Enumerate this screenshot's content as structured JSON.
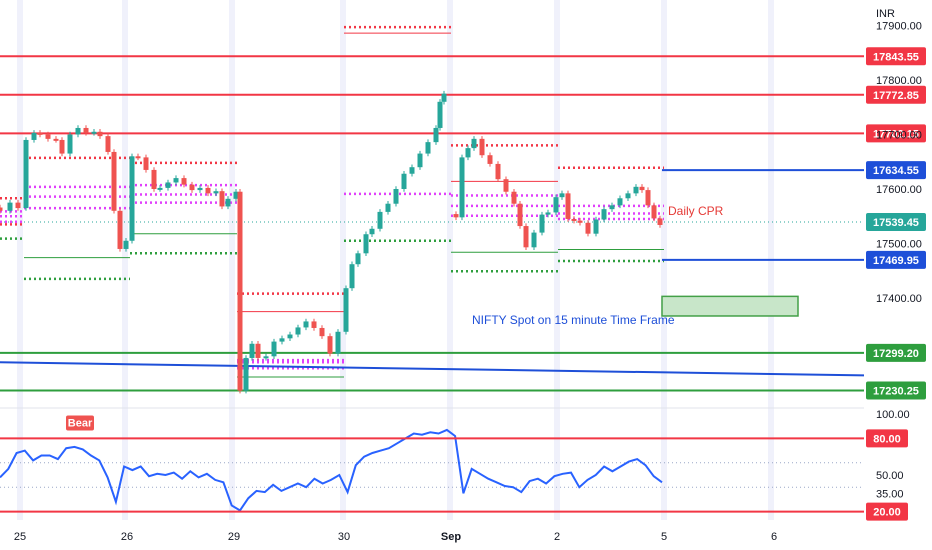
{
  "chart_data": [
    {
      "type": "candlestick",
      "currency": "INR",
      "title": "NIFTY Spot on 15 minute Time Frame",
      "ylim": [
        17375,
        17915
      ],
      "price_ticks": [
        "17900.00",
        "17800.00",
        "17700.00",
        "17600.00",
        "17500.00",
        "17400.00"
      ],
      "x_ticks": [
        "25",
        "26",
        "29",
        "30",
        "Sep",
        "2",
        "5",
        "6"
      ],
      "levels": [
        {
          "label": "17843.55",
          "value": 17843.55,
          "color": "#f23645"
        },
        {
          "label": "17772.85",
          "value": 17772.85,
          "color": "#f23645"
        },
        {
          "label": "17702.15",
          "value": 17702.15,
          "color": "#f23645"
        },
        {
          "label": "17634.55",
          "value": 17634.55,
          "color": "#1e4fd8"
        },
        {
          "label": "17539.45",
          "value": 17539.45,
          "color": "#26a69a"
        },
        {
          "label": "17469.95",
          "value": 17469.95,
          "color": "#1e4fd8"
        },
        {
          "label": "17299.20",
          "value": 17299.2,
          "color": "#2e9e3e"
        },
        {
          "label": "17230.25",
          "value": 17230.25,
          "color": "#2e9e3e"
        }
      ],
      "annotations": {
        "cpr_label": "Daily CPR"
      }
    },
    {
      "type": "line",
      "name": "RSI",
      "ylim": [
        15,
        105
      ],
      "ticks": [
        "100.00",
        "50.00",
        "35.00"
      ],
      "levels": [
        {
          "label": "80.00",
          "value": 80,
          "color": "#f23645"
        },
        {
          "label": "20.00",
          "value": 20,
          "color": "#f23645"
        }
      ],
      "signal_label": "Bear",
      "values": [
        48,
        55,
        68,
        70,
        62,
        66,
        66,
        63,
        72,
        73,
        71,
        66,
        62,
        48,
        28,
        57,
        54,
        57,
        49,
        51,
        50,
        52,
        47,
        53,
        48,
        51,
        46,
        44,
        25,
        21,
        31,
        37,
        36,
        42,
        37,
        40,
        43,
        40,
        47,
        43,
        46,
        50,
        36,
        58,
        65,
        68,
        70,
        72,
        76,
        80,
        84,
        83,
        85,
        84,
        87,
        82,
        35,
        55,
        51,
        47,
        44,
        41,
        40,
        36,
        45,
        47,
        43,
        49,
        51,
        52,
        40,
        46,
        50,
        57,
        53,
        57,
        61,
        63,
        58,
        49,
        44
      ]
    }
  ],
  "colors": {
    "up": "#26a69a",
    "down": "#ef5350",
    "resistance": "#f23645",
    "support": "#2e9e3e",
    "trend": "#1e4fd8",
    "pivot": "#e040fb",
    "rsi_line": "#2962ff"
  }
}
